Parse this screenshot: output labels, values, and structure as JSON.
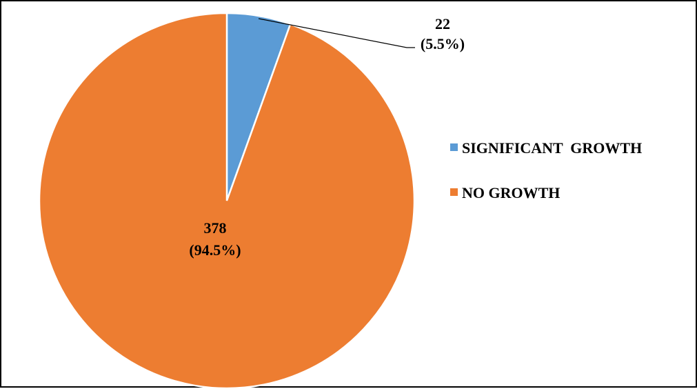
{
  "chart_data": {
    "type": "pie",
    "title": "",
    "categories": [
      "SIGNIFICANT  GROWTH",
      "NO GROWTH"
    ],
    "values": [
      22,
      378
    ],
    "percent_labels": [
      "(5.5%)",
      "(94.5%)"
    ],
    "value_labels": [
      "22",
      "378"
    ],
    "colors": [
      "#5B9BD5",
      "#ED7D31"
    ],
    "start_angle_deg": 0,
    "direction": "clockwise",
    "legend": "right",
    "slice_border_color": "#FFFFFF"
  }
}
